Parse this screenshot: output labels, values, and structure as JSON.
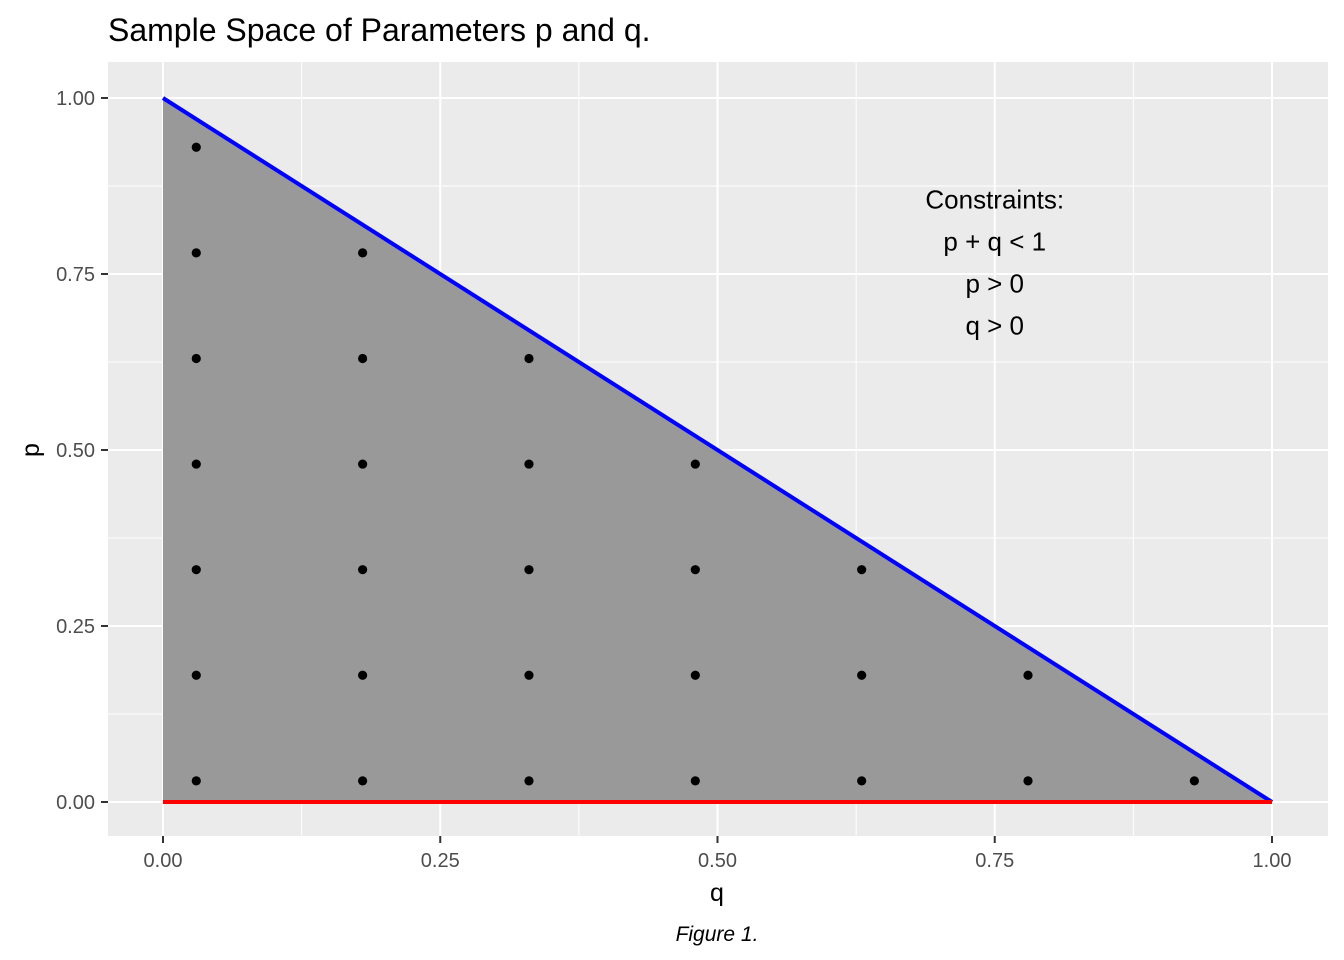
{
  "chart_data": {
    "type": "scatter",
    "title": "Sample Space of Parameters p and q.",
    "xlabel": "q",
    "ylabel": "p",
    "caption": "Figure 1.",
    "xlim": [
      -0.05,
      1.05
    ],
    "ylim": [
      -0.05,
      1.05
    ],
    "x_ticks": [
      0,
      0.25,
      0.5,
      0.75,
      1
    ],
    "x_tick_labels": [
      "0.00",
      "0.25",
      "0.50",
      "0.75",
      "1.00"
    ],
    "y_ticks": [
      0,
      0.25,
      0.5,
      0.75,
      1
    ],
    "y_tick_labels": [
      "0.00",
      "0.25",
      "0.50",
      "0.75",
      "1.00"
    ],
    "grid": true,
    "background_color": "#ebebeb",
    "region": {
      "vertices": [
        [
          0,
          0
        ],
        [
          0,
          1
        ],
        [
          1,
          0
        ]
      ],
      "fill": "#999999"
    },
    "lines": [
      {
        "from": [
          0,
          1
        ],
        "to": [
          1,
          0
        ],
        "color": "#0000ff"
      },
      {
        "from": [
          0,
          0
        ],
        "to": [
          1,
          0
        ],
        "color": "#ff0000"
      }
    ],
    "points": {
      "color": "#000000",
      "xy": [
        [
          0.03,
          0.93
        ],
        [
          0.03,
          0.78
        ],
        [
          0.18,
          0.78
        ],
        [
          0.03,
          0.63
        ],
        [
          0.18,
          0.63
        ],
        [
          0.33,
          0.63
        ],
        [
          0.03,
          0.48
        ],
        [
          0.18,
          0.48
        ],
        [
          0.33,
          0.48
        ],
        [
          0.48,
          0.48
        ],
        [
          0.03,
          0.33
        ],
        [
          0.18,
          0.33
        ],
        [
          0.33,
          0.33
        ],
        [
          0.48,
          0.33
        ],
        [
          0.63,
          0.33
        ],
        [
          0.03,
          0.18
        ],
        [
          0.18,
          0.18
        ],
        [
          0.33,
          0.18
        ],
        [
          0.48,
          0.18
        ],
        [
          0.63,
          0.18
        ],
        [
          0.78,
          0.18
        ],
        [
          0.03,
          0.03
        ],
        [
          0.18,
          0.03
        ],
        [
          0.33,
          0.03
        ],
        [
          0.48,
          0.03
        ],
        [
          0.63,
          0.03
        ],
        [
          0.78,
          0.03
        ],
        [
          0.93,
          0.03
        ]
      ]
    },
    "annotation": {
      "anchor": [
        0.75,
        0.84
      ],
      "lines": [
        "Constraints:",
        "p + q < 1",
        "p > 0",
        "q > 0"
      ]
    }
  }
}
